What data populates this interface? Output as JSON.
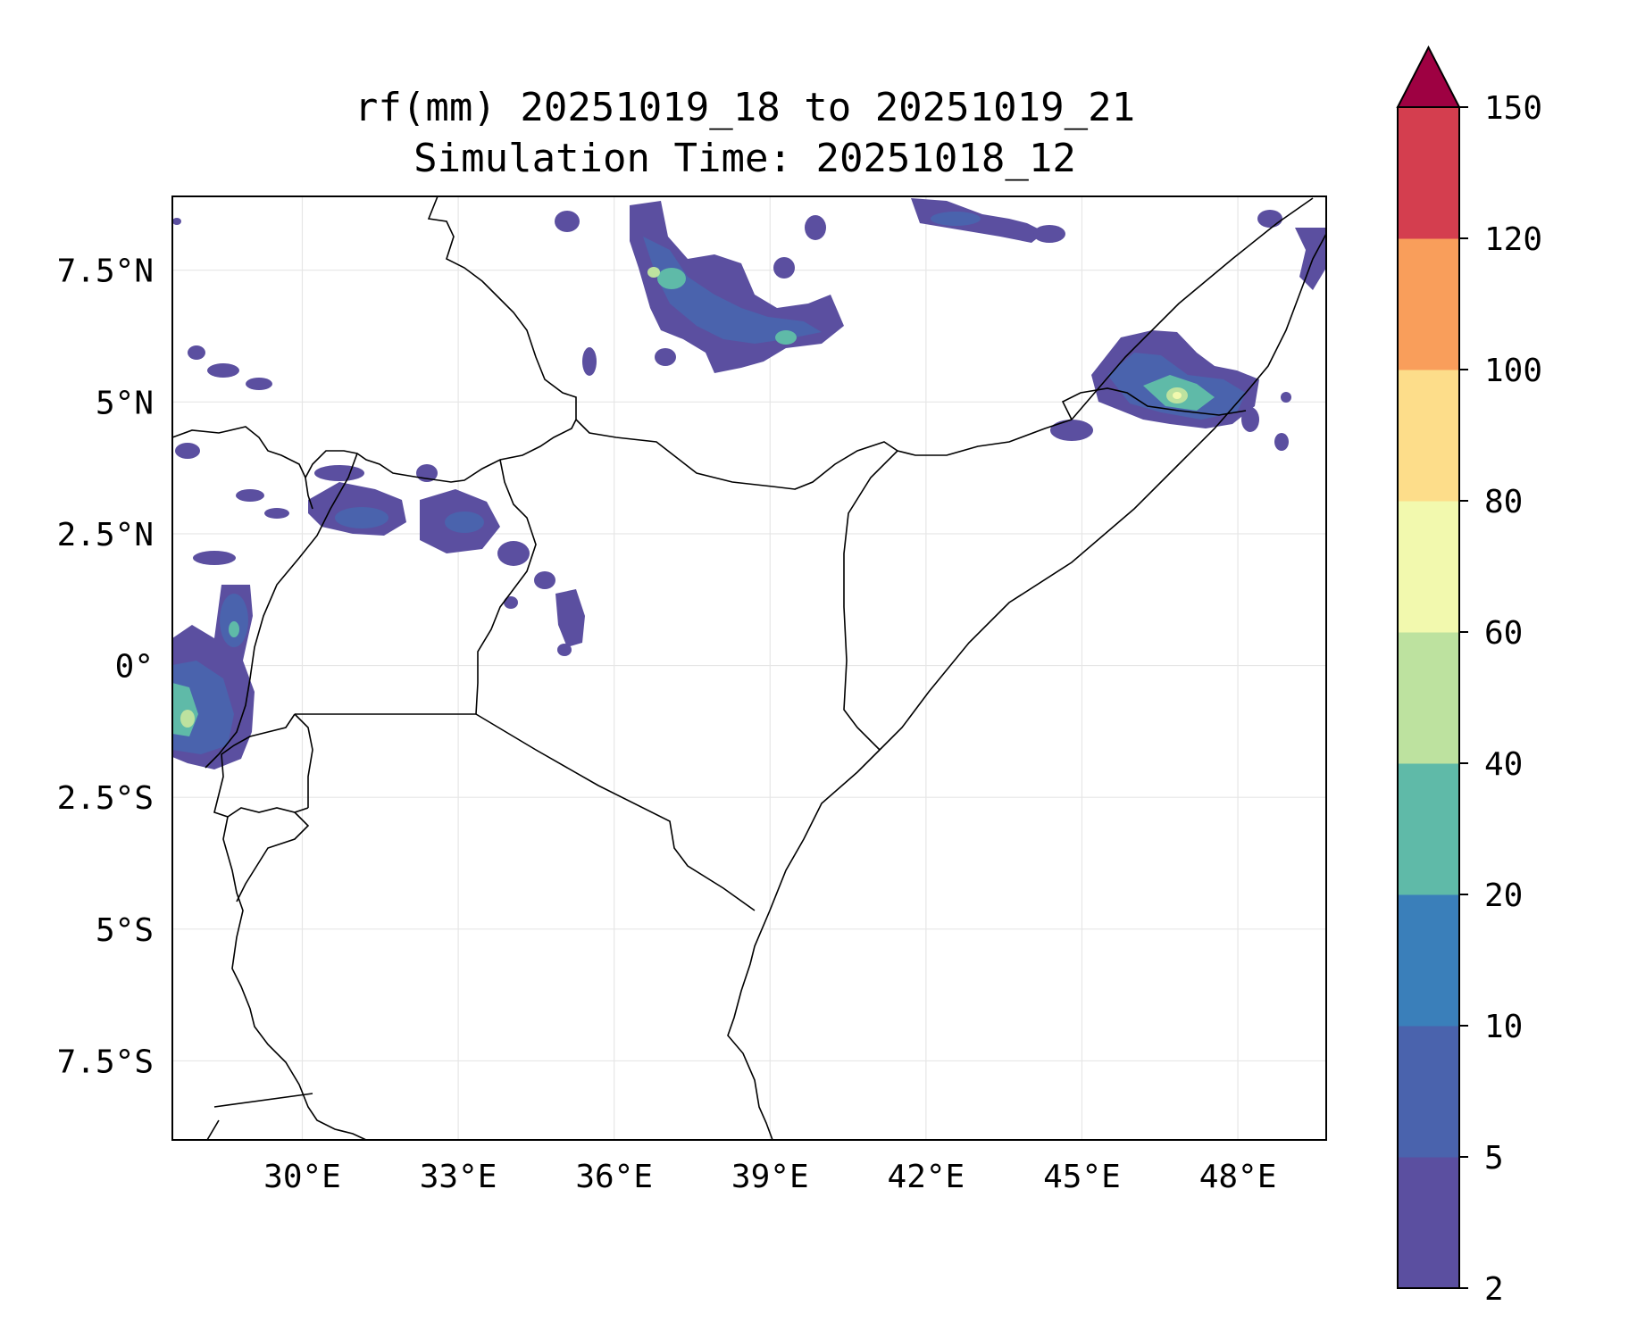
{
  "title": {
    "line1": "rf(mm) 20251019_18 to 20251019_21",
    "line2": "Simulation Time: 20251018_12"
  },
  "map": {
    "lon_range": [
      27.5,
      49.7
    ],
    "lat_range": [
      -9.0,
      8.9
    ],
    "x_ticks": [
      {
        "value": 30,
        "label": "30°E"
      },
      {
        "value": 33,
        "label": "33°E"
      },
      {
        "value": 36,
        "label": "36°E"
      },
      {
        "value": 39,
        "label": "39°E"
      },
      {
        "value": 42,
        "label": "42°E"
      },
      {
        "value": 45,
        "label": "45°E"
      },
      {
        "value": 48,
        "label": "48°E"
      }
    ],
    "y_ticks": [
      {
        "value": 7.5,
        "label": "7.5°N"
      },
      {
        "value": 5,
        "label": "5°N"
      },
      {
        "value": 2.5,
        "label": "2.5°N"
      },
      {
        "value": 0,
        "label": "0°"
      },
      {
        "value": -2.5,
        "label": "2.5°S"
      },
      {
        "value": -5,
        "label": "5°S"
      },
      {
        "value": -7.5,
        "label": "7.5°S"
      }
    ],
    "gridlines": true
  },
  "colorbar": {
    "levels": [
      2,
      5,
      10,
      20,
      40,
      60,
      80,
      100,
      120,
      150
    ],
    "level_labels": [
      "2",
      "5",
      "10",
      "20",
      "40",
      "60",
      "80",
      "100",
      "120",
      "150"
    ],
    "colors": [
      "#5b4fa0",
      "#4a63ad",
      "#3a7fba",
      "#5fbaa8",
      "#bde29f",
      "#f2f9ae",
      "#fddd8a",
      "#f99e5b",
      "#d43e4f",
      "#9e0142"
    ],
    "extend": "max"
  },
  "rain_cells": [
    {
      "lon": 28.3,
      "lat": -0.9,
      "value": 55
    },
    {
      "lon": 29.2,
      "lat": 0.8,
      "value": 25
    },
    {
      "lon": 32.2,
      "lat": 2.9,
      "value": 12
    },
    {
      "lon": 34.0,
      "lat": 2.8,
      "value": 10
    },
    {
      "lon": 35.6,
      "lat": 0.8,
      "value": 6
    },
    {
      "lon": 37.9,
      "lat": 7.4,
      "value": 30
    },
    {
      "lon": 38.8,
      "lat": 6.4,
      "value": 18
    },
    {
      "lon": 40.3,
      "lat": 6.3,
      "value": 15
    },
    {
      "lon": 43.0,
      "lat": 8.5,
      "value": 6
    },
    {
      "lon": 47.2,
      "lat": 5.1,
      "value": 60
    },
    {
      "lon": 45.2,
      "lat": 4.5,
      "value": 6
    },
    {
      "lon": 49.4,
      "lat": 7.8,
      "value": 8
    }
  ]
}
